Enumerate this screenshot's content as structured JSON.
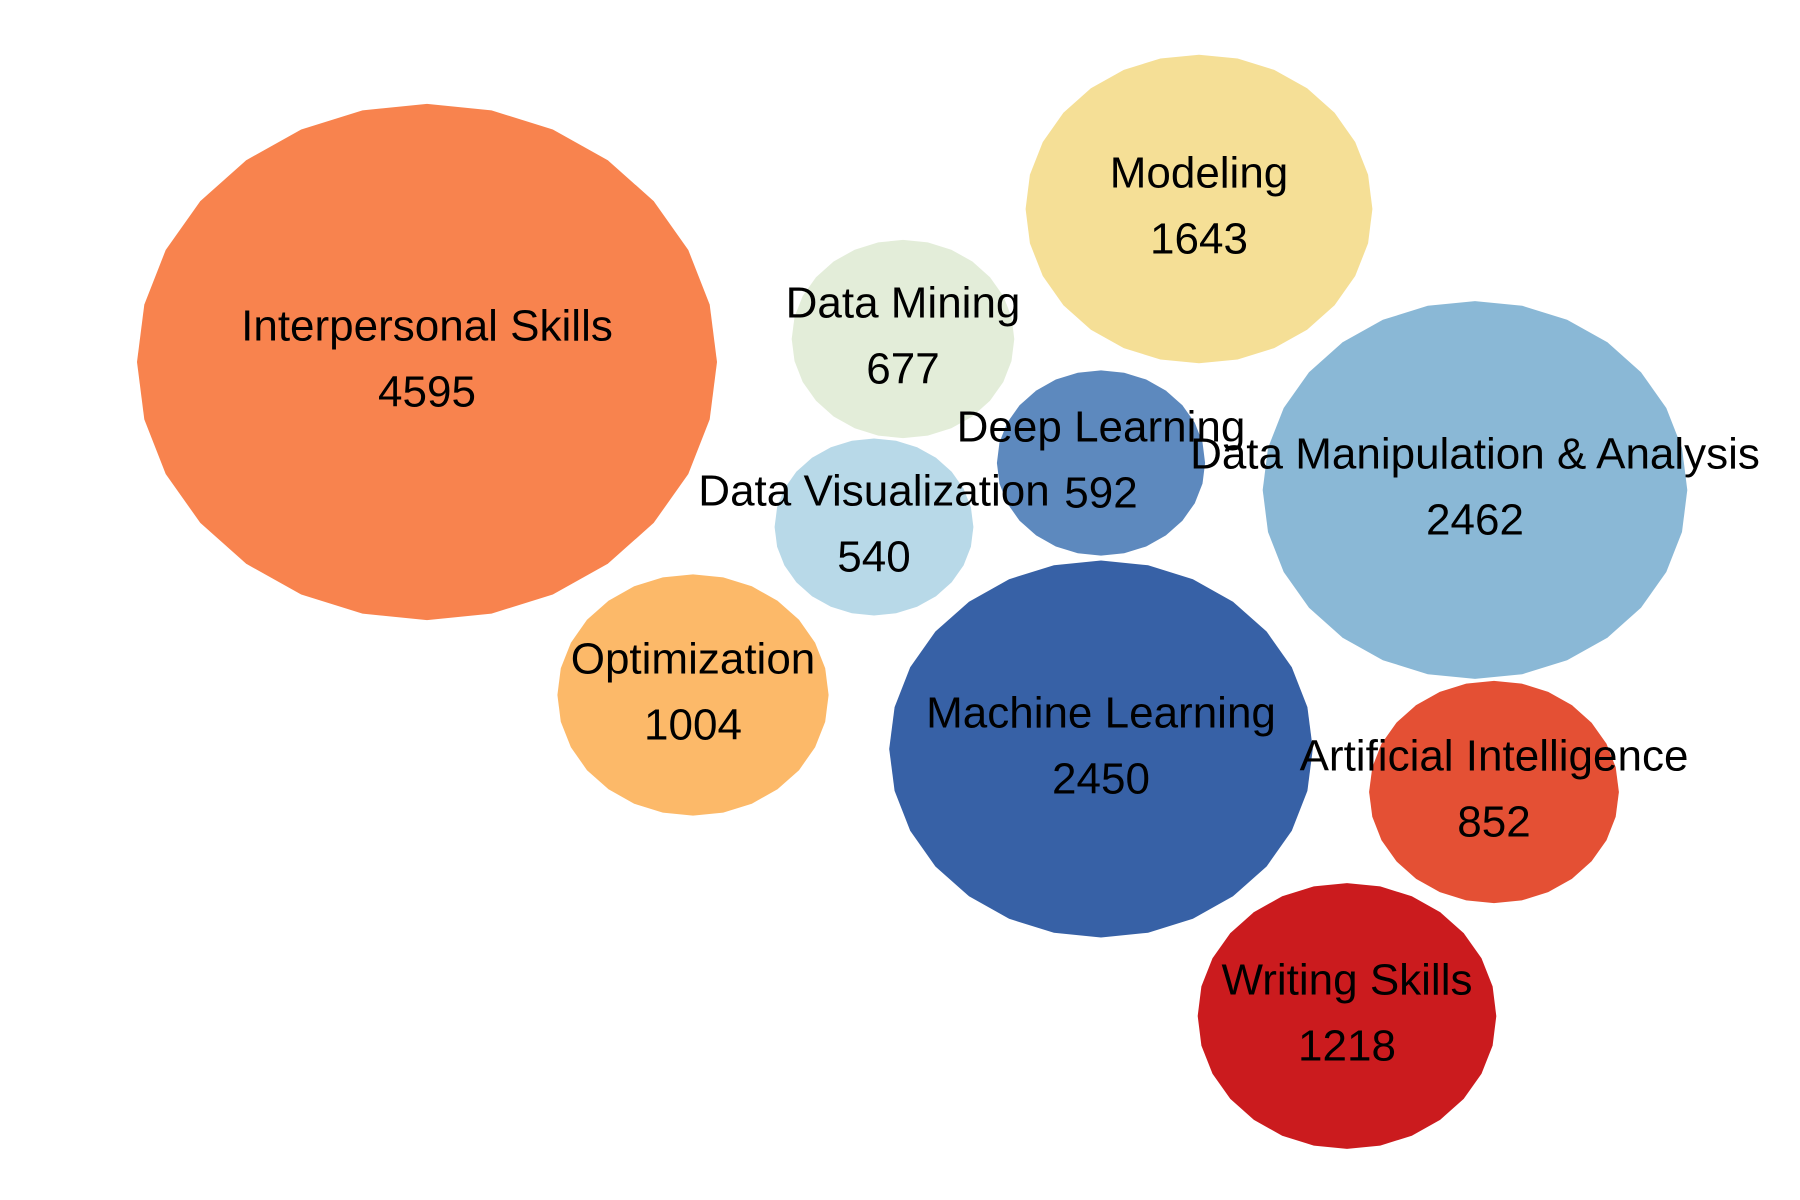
{
  "chart_data": {
    "type": "bubble",
    "title": "",
    "legend": false,
    "grid": false,
    "items": [
      {
        "label": "Interpersonal Skills",
        "value": 4595,
        "color": "#F8834E"
      },
      {
        "label": "Modeling",
        "value": 1643,
        "color": "#F5DF96"
      },
      {
        "label": "Data Mining",
        "value": 677,
        "color": "#E3EDD9"
      },
      {
        "label": "Deep Learning",
        "value": 592,
        "color": "#5D89BE"
      },
      {
        "label": "Data Manipulation & Analysis",
        "value": 2462,
        "color": "#8AB8D6"
      },
      {
        "label": "Data Visualization",
        "value": 540,
        "color": "#B8D9E8"
      },
      {
        "label": "Optimization",
        "value": 1004,
        "color": "#FCB969"
      },
      {
        "label": "Machine Learning",
        "value": 2450,
        "color": "#3761A6"
      },
      {
        "label": "Artificial Intelligence",
        "value": 852,
        "color": "#E45034"
      },
      {
        "label": "Writing Skills",
        "value": 1218,
        "color": "#CB1B1E"
      }
    ]
  }
}
